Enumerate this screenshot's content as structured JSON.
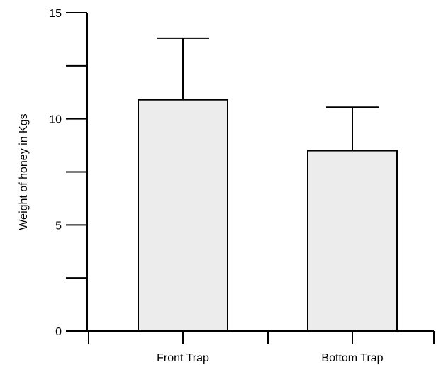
{
  "chart_data": {
    "type": "bar",
    "categories": [
      "Front Trap",
      "Bottom Trap"
    ],
    "values": [
      10.9,
      8.5
    ],
    "error_upper": [
      13.8,
      10.55
    ],
    "ylabel": "Weight of honey in Kgs",
    "xlabel": "",
    "title": "",
    "ylim": [
      0,
      15
    ],
    "y_ticks": [
      0,
      5,
      10,
      15
    ],
    "y_tick_labels": [
      "0",
      "5",
      "10",
      "15"
    ],
    "y_minor_ticks": [
      2.5,
      7.5,
      12.5
    ],
    "grid": false,
    "legend": "none",
    "bar_color": "#ececec",
    "axis_color": "#000000"
  }
}
